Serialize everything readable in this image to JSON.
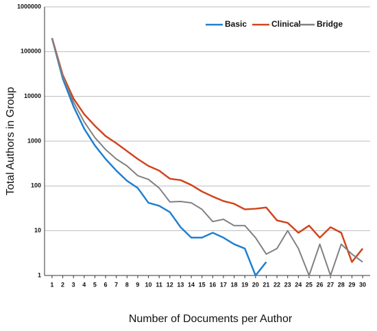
{
  "chart_data": {
    "type": "line",
    "x_label": "Number of Documents per Author",
    "y_label": "Total Authors in Group",
    "x": [
      1,
      2,
      3,
      4,
      5,
      6,
      7,
      8,
      9,
      10,
      11,
      12,
      13,
      14,
      15,
      16,
      17,
      18,
      19,
      20,
      21,
      22,
      23,
      24,
      25,
      26,
      27,
      28,
      29,
      30
    ],
    "series": [
      {
        "name": "Basic",
        "color": "#1f7fd0",
        "values": [
          200000,
          25000,
          6000,
          1900,
          800,
          400,
          220,
          130,
          90,
          42,
          36,
          26,
          12,
          7,
          7,
          9,
          7,
          5,
          4,
          1,
          2,
          null,
          null,
          null,
          null,
          null,
          null,
          null,
          null,
          null
        ]
      },
      {
        "name": "Clinical",
        "color": "#d1441c",
        "values": [
          200000,
          30000,
          9000,
          4000,
          2200,
          1300,
          900,
          600,
          400,
          280,
          220,
          145,
          135,
          105,
          75,
          58,
          46,
          40,
          30,
          31,
          33,
          17,
          15,
          9,
          13,
          7,
          12,
          9,
          2,
          4
        ]
      },
      {
        "name": "Bridge",
        "color": "#808080",
        "values": [
          200000,
          28000,
          7500,
          2700,
          1200,
          650,
          400,
          280,
          170,
          140,
          90,
          44,
          45,
          42,
          30,
          16,
          18,
          13,
          13,
          7,
          3,
          4,
          10,
          4,
          1,
          5,
          1,
          5,
          3,
          2
        ]
      }
    ],
    "xlim": [
      0.3,
      30.7
    ],
    "xticks": [
      1,
      2,
      3,
      4,
      5,
      6,
      7,
      8,
      9,
      10,
      11,
      12,
      13,
      14,
      15,
      16,
      17,
      18,
      19,
      20,
      21,
      22,
      23,
      24,
      25,
      26,
      27,
      28,
      29,
      30
    ],
    "ylim": [
      1,
      1000000
    ],
    "yticks": [
      1,
      10,
      100,
      1000,
      10000,
      100000,
      1000000
    ],
    "log_y": true,
    "grid": true,
    "legend": "top-right"
  }
}
